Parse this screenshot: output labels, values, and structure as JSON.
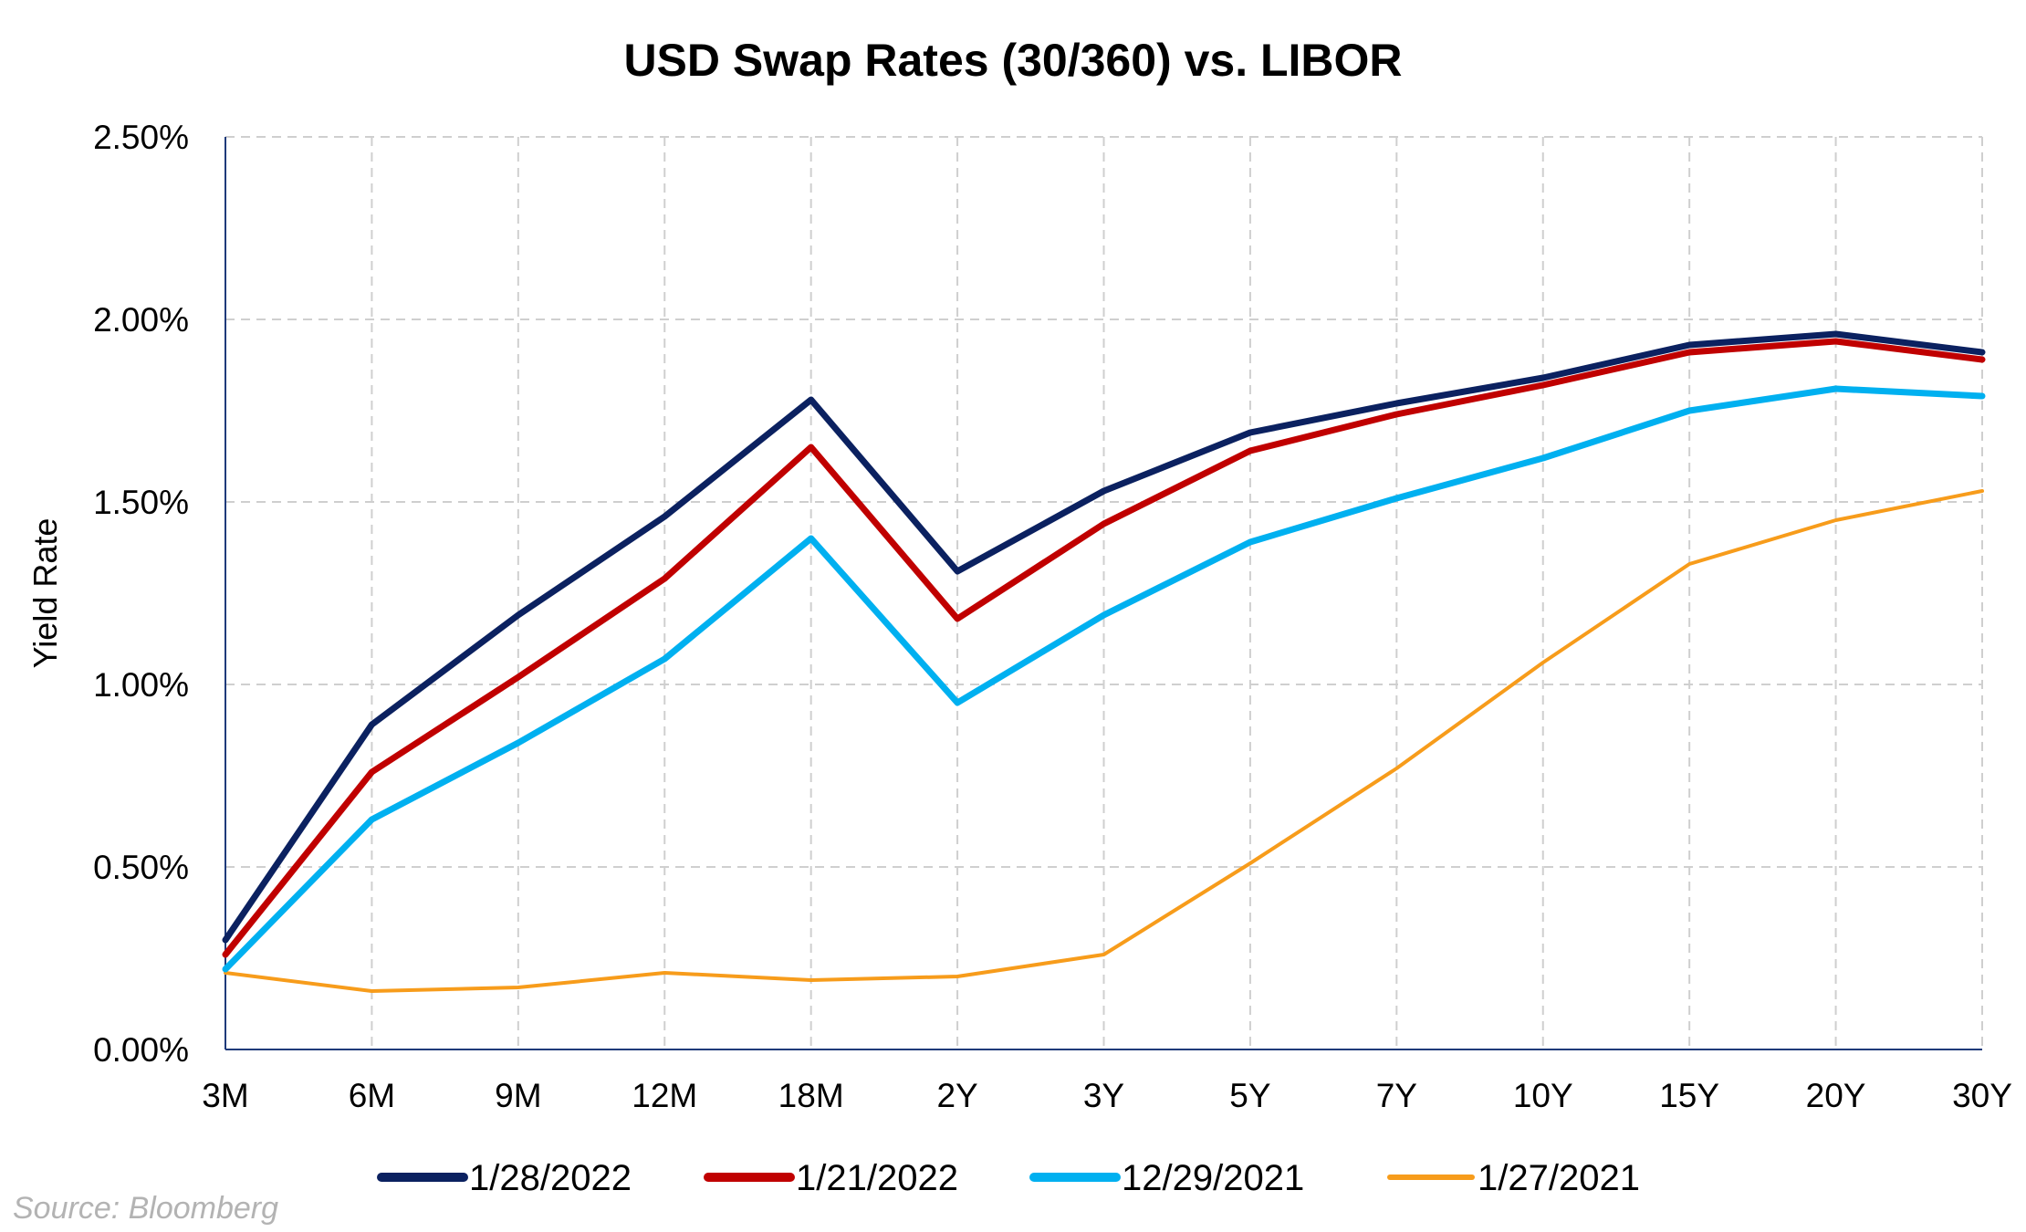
{
  "chart_data": {
    "type": "line",
    "title": "USD Swap Rates (30/360) vs. LIBOR",
    "xlabel": "",
    "ylabel": "Yield Rate",
    "categories": [
      "3M",
      "6M",
      "9M",
      "12M",
      "18M",
      "2Y",
      "3Y",
      "5Y",
      "7Y",
      "10Y",
      "15Y",
      "20Y",
      "30Y"
    ],
    "ylim": [
      0,
      2.5
    ],
    "yticks": [
      "0.00%",
      "0.50%",
      "1.00%",
      "1.50%",
      "2.00%",
      "2.50%"
    ],
    "grid": true,
    "legend_position": "bottom",
    "series": [
      {
        "name": "1/28/2022",
        "color": "#0b2160",
        "values": [
          0.3,
          0.89,
          1.19,
          1.46,
          1.78,
          1.31,
          1.53,
          1.69,
          1.77,
          1.84,
          1.93,
          1.96,
          1.91
        ]
      },
      {
        "name": "1/21/2022",
        "color": "#c00000",
        "values": [
          0.26,
          0.76,
          1.02,
          1.29,
          1.65,
          1.18,
          1.44,
          1.64,
          1.74,
          1.82,
          1.91,
          1.94,
          1.89
        ]
      },
      {
        "name": "12/29/2021",
        "color": "#00b0f0",
        "values": [
          0.22,
          0.63,
          0.84,
          1.07,
          1.4,
          0.95,
          1.19,
          1.39,
          1.51,
          1.62,
          1.75,
          1.81,
          1.79
        ]
      },
      {
        "name": "1/27/2021",
        "color": "#f79c1b",
        "values": [
          0.21,
          0.16,
          0.17,
          0.21,
          0.19,
          0.2,
          0.26,
          0.51,
          0.77,
          1.06,
          1.33,
          1.45,
          1.53
        ]
      }
    ],
    "source_note": "Source: Bloomberg"
  }
}
